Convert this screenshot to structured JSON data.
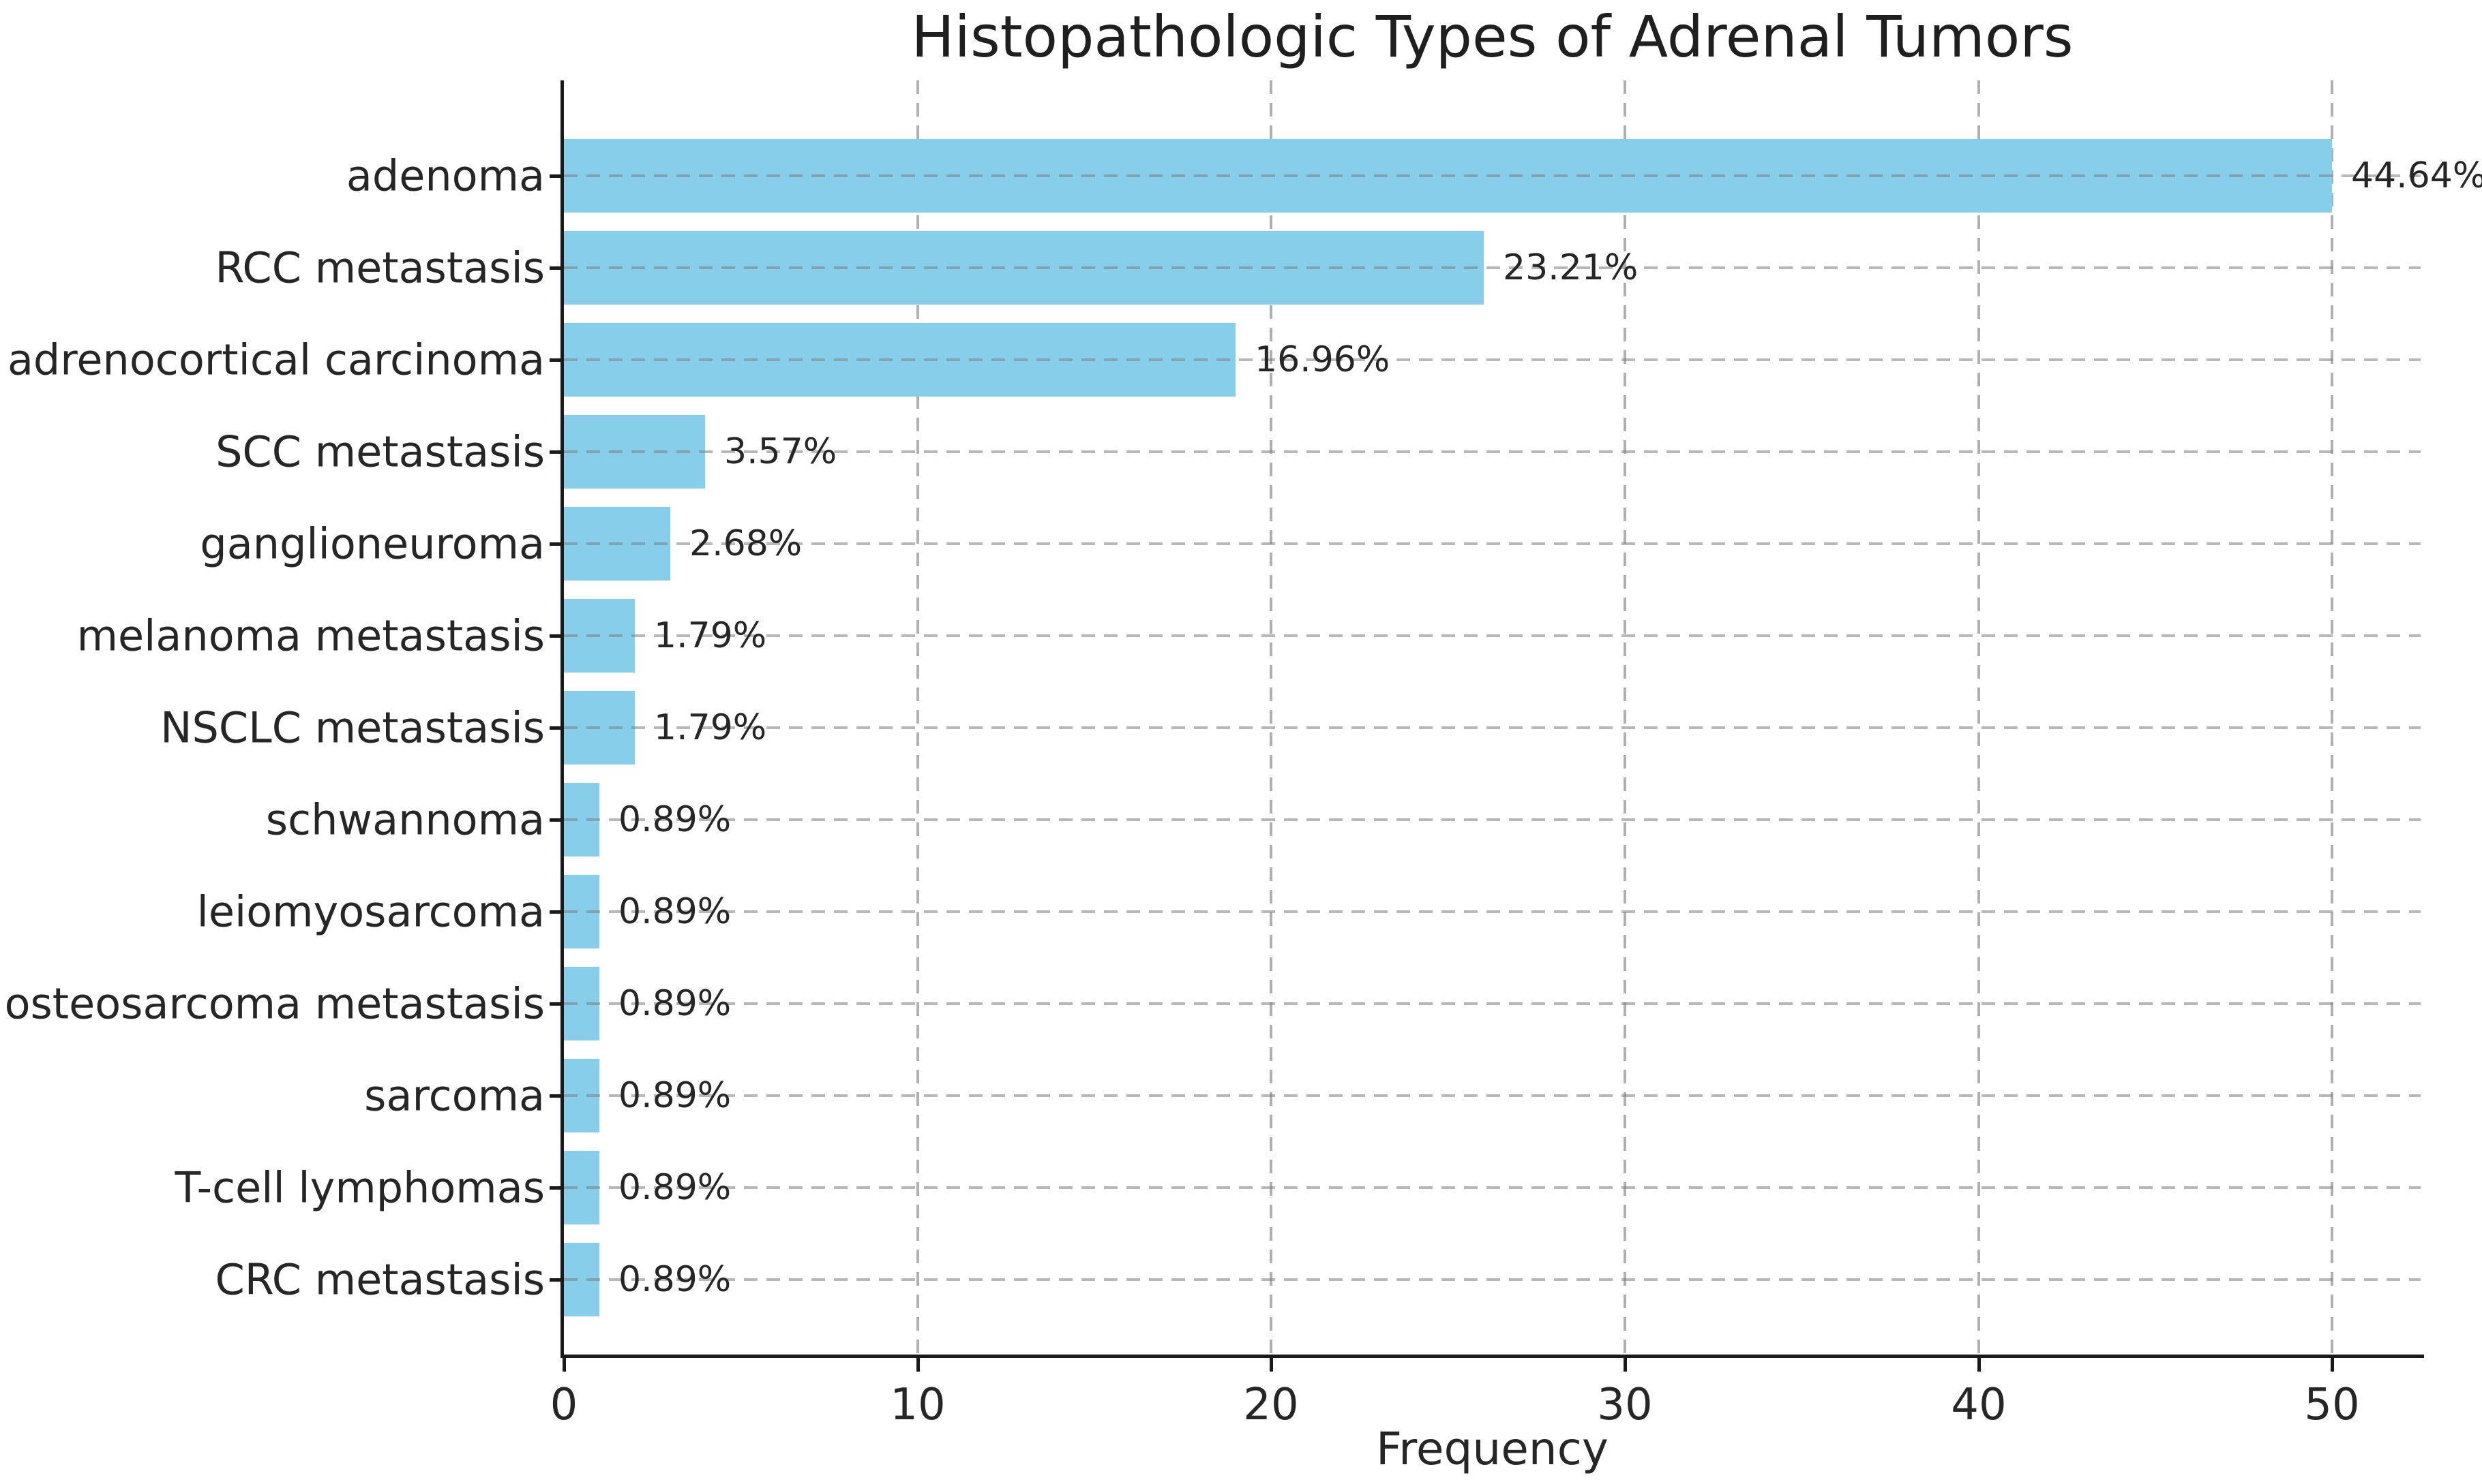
{
  "chart_data": {
    "type": "bar",
    "orientation": "horizontal",
    "title": "Histopathologic Types of Adrenal Tumors",
    "xlabel": "Frequency",
    "ylabel": "",
    "categories": [
      "adenoma",
      "RCC metastasis",
      "adrenocortical carcinoma",
      "SCC metastasis",
      "ganglioneuroma",
      "melanoma metastasis",
      "NSCLC metastasis",
      "schwannoma",
      "leiomyosarcoma",
      "osteosarcoma metastasis",
      "sarcoma",
      "T-cell lymphomas",
      "CRC metastasis"
    ],
    "values": [
      50,
      26,
      19,
      4,
      3,
      2,
      2,
      1,
      1,
      1,
      1,
      1,
      1
    ],
    "bar_labels": [
      "44.64%",
      "23.21%",
      "16.96%",
      "3.57%",
      "2.68%",
      "1.79%",
      "1.79%",
      "0.89%",
      "0.89%",
      "0.89%",
      "0.89%",
      "0.89%",
      "0.89%"
    ],
    "xticks": [
      0,
      10,
      20,
      30,
      40,
      50
    ],
    "xtick_labels": [
      "0",
      "10",
      "20",
      "30",
      "40",
      "50"
    ],
    "xlim": [
      0,
      52.5
    ],
    "grid": "dashed",
    "legend_position": "none",
    "colors": {
      "bar": "#87CEEB",
      "vertical_grid": "#b0b0b0",
      "horizontal_grid": "rgba(125,125,125,0.55)",
      "axis": "#1a1a1a",
      "text": "#262626",
      "title_text": "#1f1f1f",
      "background": "#ffffff"
    }
  }
}
